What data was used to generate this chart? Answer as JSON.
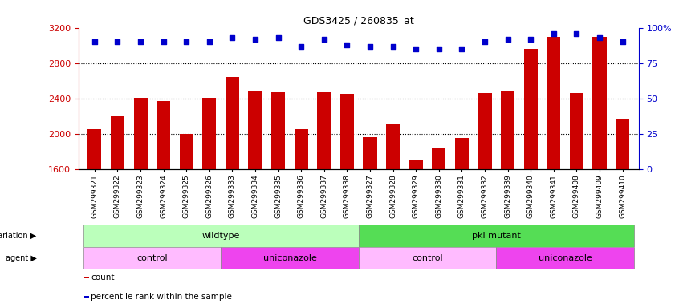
{
  "title": "GDS3425 / 260835_at",
  "samples": [
    "GSM299321",
    "GSM299322",
    "GSM299323",
    "GSM299324",
    "GSM299325",
    "GSM299326",
    "GSM299333",
    "GSM299334",
    "GSM299335",
    "GSM299336",
    "GSM299337",
    "GSM299338",
    "GSM299327",
    "GSM299328",
    "GSM299329",
    "GSM299330",
    "GSM299331",
    "GSM299332",
    "GSM299339",
    "GSM299340",
    "GSM299341",
    "GSM299408",
    "GSM299409",
    "GSM299410"
  ],
  "counts": [
    2060,
    2200,
    2410,
    2370,
    2000,
    2410,
    2640,
    2480,
    2470,
    2060,
    2470,
    2450,
    1970,
    2120,
    1700,
    1840,
    1960,
    2460,
    2480,
    2960,
    3100,
    2460,
    3100,
    2170
  ],
  "percentile": [
    90,
    90,
    90,
    90,
    90,
    90,
    93,
    92,
    93,
    87,
    92,
    88,
    87,
    87,
    85,
    85,
    85,
    90,
    92,
    92,
    96,
    96,
    93,
    90
  ],
  "ylim_left": [
    1600,
    3200
  ],
  "ylim_right": [
    0,
    100
  ],
  "yticks_left": [
    1600,
    2000,
    2400,
    2800,
    3200
  ],
  "yticks_right": [
    0,
    25,
    50,
    75,
    100
  ],
  "bar_color": "#cc0000",
  "dot_color": "#0000cc",
  "grid_color": "#000000",
  "bg_color": "#ffffff",
  "genotype_groups": [
    {
      "name": "wildtype",
      "start": 0,
      "end": 12,
      "color": "#bbffbb"
    },
    {
      "name": "pkl mutant",
      "start": 12,
      "end": 24,
      "color": "#55dd55"
    }
  ],
  "agent_groups": [
    {
      "name": "control",
      "start": 0,
      "end": 6,
      "color": "#ffbbff"
    },
    {
      "name": "uniconazole",
      "start": 6,
      "end": 12,
      "color": "#ee44ee"
    },
    {
      "name": "control",
      "start": 12,
      "end": 18,
      "color": "#ffbbff"
    },
    {
      "name": "uniconazole",
      "start": 18,
      "end": 24,
      "color": "#ee44ee"
    }
  ],
  "legend_items": [
    {
      "label": "count",
      "color": "#cc0000"
    },
    {
      "label": "percentile rank within the sample",
      "color": "#0000cc"
    }
  ]
}
